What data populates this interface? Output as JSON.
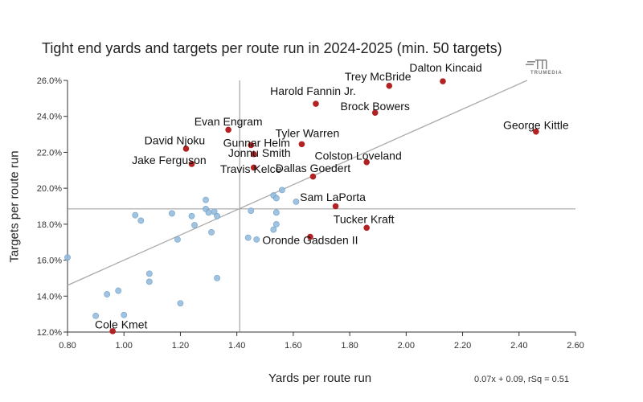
{
  "chart_data": {
    "type": "scatter",
    "title": "Tight end yards and targets per route run in 2024-2025 (min. 50 targets)",
    "xlabel": "Yards per route run",
    "ylabel": "Targets per route run",
    "xlim": [
      0.8,
      2.6
    ],
    "ylim": [
      12.0,
      26.0
    ],
    "x_ticks": [
      "0.80",
      "1.00",
      "1.20",
      "1.40",
      "1.60",
      "1.80",
      "2.00",
      "2.20",
      "2.40",
      "2.60"
    ],
    "y_ticks": [
      "12.0%",
      "14.0%",
      "16.0%",
      "18.0%",
      "20.0%",
      "22.0%",
      "24.0%",
      "26.0%"
    ],
    "mean_x": 1.41,
    "mean_y": 18.85,
    "trendline": {
      "slope": 7.0,
      "intercept": 9.0,
      "label": "0.07x + 0.09, rSq = 0.51"
    },
    "brand": "TRUMEDIA",
    "highlight_color": "#b22222",
    "point_color": "#8fb8dc",
    "highlighted": [
      {
        "label": "Dalton Kincaid",
        "x": 2.13,
        "y": 25.95,
        "lx": 2.14,
        "ly": 26.5,
        "anchor": "middle"
      },
      {
        "label": "Trey McBride",
        "x": 1.94,
        "y": 25.7,
        "lx": 1.9,
        "ly": 26.0,
        "anchor": "middle"
      },
      {
        "label": "Harold Fannin Jr.",
        "x": 1.68,
        "y": 24.7,
        "lx": 1.67,
        "ly": 25.2,
        "anchor": "middle"
      },
      {
        "label": "Brock Bowers",
        "x": 1.89,
        "y": 24.2,
        "lx": 1.89,
        "ly": 24.35,
        "anchor": "middle"
      },
      {
        "label": "George Kittle",
        "x": 2.46,
        "y": 23.15,
        "lx": 2.46,
        "ly": 23.3,
        "anchor": "middle"
      },
      {
        "label": "Evan Engram",
        "x": 1.37,
        "y": 23.25,
        "lx": 1.37,
        "ly": 23.5,
        "anchor": "middle"
      },
      {
        "label": "Tyler Warren",
        "x": 1.63,
        "y": 22.45,
        "lx": 1.65,
        "ly": 22.85,
        "anchor": "middle"
      },
      {
        "label": "Gunnar Helm",
        "x": 1.45,
        "y": 22.4,
        "lx": 1.47,
        "ly": 22.3,
        "anchor": "middle"
      },
      {
        "label": "David Njoku",
        "x": 1.22,
        "y": 22.2,
        "lx": 1.18,
        "ly": 22.45,
        "anchor": "middle"
      },
      {
        "label": "Jonnu Smith",
        "x": 1.46,
        "y": 21.9,
        "lx": 1.48,
        "ly": 21.75,
        "anchor": "middle"
      },
      {
        "label": "Colston Loveland",
        "x": 1.86,
        "y": 21.45,
        "lx": 1.83,
        "ly": 21.6,
        "anchor": "middle"
      },
      {
        "label": "Jake Ferguson",
        "x": 1.24,
        "y": 21.35,
        "lx": 1.16,
        "ly": 21.35,
        "anchor": "middle"
      },
      {
        "label": "Travis Kelce",
        "x": 1.46,
        "y": 21.15,
        "lx": 1.45,
        "ly": 20.85,
        "anchor": "middle"
      },
      {
        "label": "Dallas Goedert",
        "x": 1.67,
        "y": 20.65,
        "lx": 1.67,
        "ly": 20.9,
        "anchor": "middle"
      },
      {
        "label": "Sam LaPorta",
        "x": 1.75,
        "y": 19.0,
        "lx": 1.74,
        "ly": 19.3,
        "anchor": "middle"
      },
      {
        "label": "Tucker Kraft",
        "x": 1.86,
        "y": 17.8,
        "lx": 1.85,
        "ly": 18.05,
        "anchor": "middle"
      },
      {
        "label": "Oronde Gadsden II",
        "x": 1.66,
        "y": 17.3,
        "lx": 1.66,
        "ly": 16.9,
        "anchor": "middle"
      },
      {
        "label": "Cole Kmet",
        "x": 0.96,
        "y": 12.05,
        "lx": 0.99,
        "ly": 12.2,
        "anchor": "middle"
      }
    ],
    "others": [
      {
        "x": 0.8,
        "y": 16.15
      },
      {
        "x": 0.94,
        "y": 14.1
      },
      {
        "x": 0.98,
        "y": 14.3
      },
      {
        "x": 0.9,
        "y": 12.9
      },
      {
        "x": 1.0,
        "y": 12.95
      },
      {
        "x": 1.04,
        "y": 18.5
      },
      {
        "x": 1.06,
        "y": 18.2
      },
      {
        "x": 1.09,
        "y": 15.25
      },
      {
        "x": 1.09,
        "y": 14.8
      },
      {
        "x": 1.17,
        "y": 18.6
      },
      {
        "x": 1.19,
        "y": 17.15
      },
      {
        "x": 1.2,
        "y": 13.6
      },
      {
        "x": 1.24,
        "y": 18.45
      },
      {
        "x": 1.25,
        "y": 17.95
      },
      {
        "x": 1.29,
        "y": 19.35
      },
      {
        "x": 1.29,
        "y": 18.85
      },
      {
        "x": 1.3,
        "y": 18.65
      },
      {
        "x": 1.32,
        "y": 18.7
      },
      {
        "x": 1.33,
        "y": 18.45
      },
      {
        "x": 1.31,
        "y": 17.55
      },
      {
        "x": 1.33,
        "y": 15.0
      },
      {
        "x": 1.44,
        "y": 17.25
      },
      {
        "x": 1.45,
        "y": 18.75
      },
      {
        "x": 1.47,
        "y": 17.15
      },
      {
        "x": 1.53,
        "y": 19.6
      },
      {
        "x": 1.54,
        "y": 19.45
      },
      {
        "x": 1.56,
        "y": 19.9
      },
      {
        "x": 1.54,
        "y": 18.65
      },
      {
        "x": 1.54,
        "y": 18.0
      },
      {
        "x": 1.53,
        "y": 17.7
      },
      {
        "x": 1.61,
        "y": 19.25
      }
    ]
  }
}
